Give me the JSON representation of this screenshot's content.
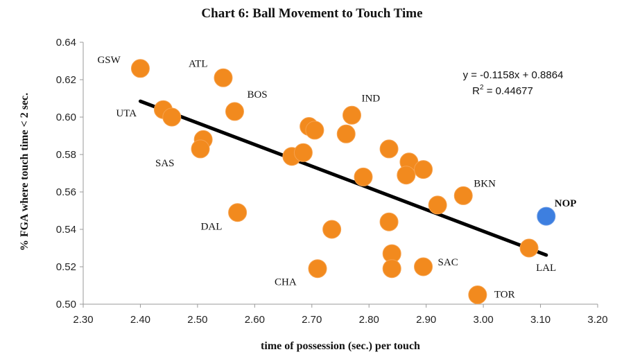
{
  "chart_data": {
    "type": "scatter",
    "title": "Chart 6: Ball Movement to Touch Time",
    "xlabel": "time of possession (sec.) per touch",
    "ylabel": "% FGA where touch time < 2 sec.",
    "xlim": [
      2.3,
      3.2
    ],
    "ylim": [
      0.5,
      0.64
    ],
    "xticks": [
      "2.30",
      "2.40",
      "2.50",
      "2.60",
      "2.70",
      "2.80",
      "2.90",
      "3.00",
      "3.10",
      "3.20"
    ],
    "yticks": [
      "0.50",
      "0.52",
      "0.54",
      "0.56",
      "0.58",
      "0.60",
      "0.62",
      "0.64"
    ],
    "grid": false,
    "point_color": "#f28a1e",
    "highlight_color": "#3d7fe0",
    "trendline_color": "#000000",
    "trendline": {
      "slope": -0.1158,
      "intercept": 0.8864,
      "x_range": [
        2.4,
        3.11
      ]
    },
    "equation": "y = -0.1158x + 0.8864",
    "r2_text": "R",
    "r2_sup": "2",
    "r2_value": " = 0.44677",
    "points": [
      {
        "x": 2.4,
        "y": 0.626,
        "label": "GSW"
      },
      {
        "x": 2.545,
        "y": 0.621,
        "label": "ATL"
      },
      {
        "x": 2.565,
        "y": 0.603,
        "label": "BOS"
      },
      {
        "x": 2.44,
        "y": 0.604,
        "label": "UTA"
      },
      {
        "x": 2.455,
        "y": 0.6,
        "label": ""
      },
      {
        "x": 2.51,
        "y": 0.588,
        "label": ""
      },
      {
        "x": 2.505,
        "y": 0.583,
        "label": "SAS"
      },
      {
        "x": 2.57,
        "y": 0.549,
        "label": "DAL"
      },
      {
        "x": 2.665,
        "y": 0.579,
        "label": ""
      },
      {
        "x": 2.685,
        "y": 0.581,
        "label": ""
      },
      {
        "x": 2.695,
        "y": 0.595,
        "label": ""
      },
      {
        "x": 2.705,
        "y": 0.593,
        "label": ""
      },
      {
        "x": 2.735,
        "y": 0.54,
        "label": ""
      },
      {
        "x": 2.71,
        "y": 0.519,
        "label": "CHA"
      },
      {
        "x": 2.76,
        "y": 0.591,
        "label": ""
      },
      {
        "x": 2.77,
        "y": 0.601,
        "label": "IND"
      },
      {
        "x": 2.79,
        "y": 0.568,
        "label": ""
      },
      {
        "x": 2.835,
        "y": 0.583,
        "label": ""
      },
      {
        "x": 2.835,
        "y": 0.544,
        "label": ""
      },
      {
        "x": 2.84,
        "y": 0.527,
        "label": ""
      },
      {
        "x": 2.84,
        "y": 0.519,
        "label": ""
      },
      {
        "x": 2.87,
        "y": 0.576,
        "label": ""
      },
      {
        "x": 2.865,
        "y": 0.569,
        "label": ""
      },
      {
        "x": 2.895,
        "y": 0.572,
        "label": ""
      },
      {
        "x": 2.895,
        "y": 0.52,
        "label": "SAC"
      },
      {
        "x": 2.92,
        "y": 0.553,
        "label": ""
      },
      {
        "x": 2.965,
        "y": 0.558,
        "label": "BKN"
      },
      {
        "x": 2.99,
        "y": 0.505,
        "label": "TOR"
      },
      {
        "x": 3.08,
        "y": 0.53,
        "label": "LAL"
      },
      {
        "x": 3.11,
        "y": 0.547,
        "label": "NOP",
        "highlight": true
      }
    ]
  }
}
